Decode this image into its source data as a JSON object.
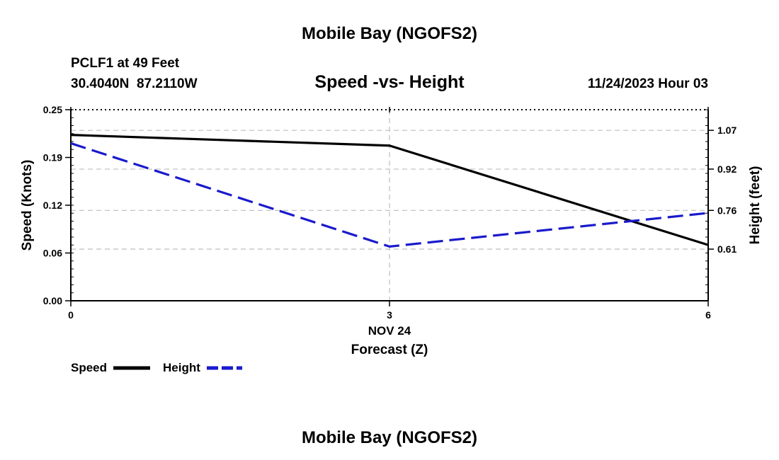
{
  "page": {
    "title": "Mobile Bay (NGOFS2)",
    "station_line": "PCLF1 at 49 Feet",
    "coords_line": "30.4040N  87.2110W",
    "chart_title": "Speed -vs- Height",
    "datetime": "11/24/2023 Hour 03",
    "footer_title": "Mobile Bay (NGOFS2)"
  },
  "chart_data": {
    "type": "line",
    "title": "Speed -vs- Height",
    "xlabel": "Forecast (Z)",
    "x_date_label": "NOV 24",
    "x": [
      0,
      3,
      6
    ],
    "xlim": [
      0,
      6
    ],
    "x_ticks": [
      "0",
      "3",
      "6"
    ],
    "ylabel_left": "Speed (Knots)",
    "ylim_left": [
      0.0,
      0.25
    ],
    "y_ticks_left": [
      "0.00",
      "0.06",
      "0.12",
      "0.19",
      "0.25"
    ],
    "ylabel_right": "Height (feet)",
    "ylim_right": [
      0.41,
      1.15
    ],
    "y_ticks_right": [
      "0.61",
      "0.76",
      "0.92",
      "1.07"
    ],
    "y_ticks_right_values": [
      0.61,
      0.76,
      0.92,
      1.07
    ],
    "grid": true,
    "series": [
      {
        "name": "Speed",
        "axis": "left",
        "color": "#000000",
        "dash": "solid",
        "values": [
          0.217,
          0.203,
          0.073
        ]
      },
      {
        "name": "Height",
        "axis": "right",
        "color": "#1a1acc",
        "dash": "dashed",
        "values": [
          1.02,
          0.62,
          0.75
        ]
      }
    ],
    "legend": [
      "Speed",
      "Height"
    ]
  }
}
